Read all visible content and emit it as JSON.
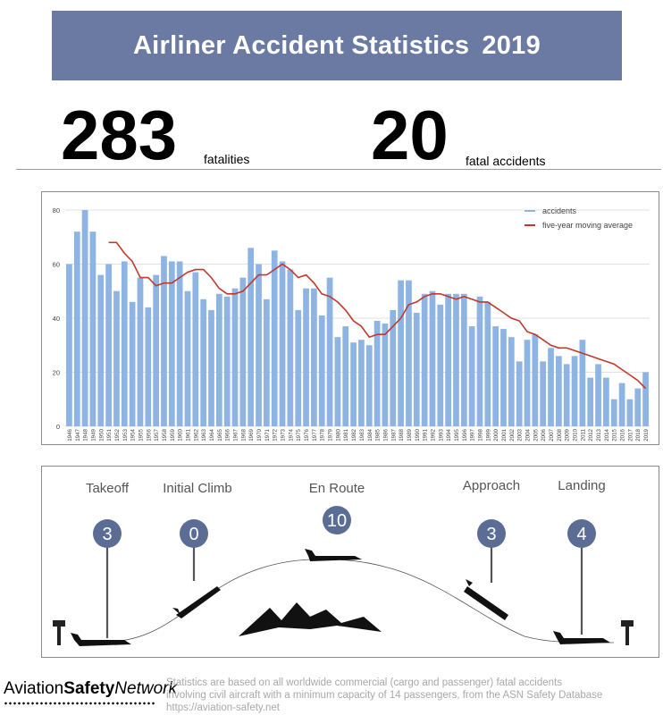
{
  "header": {
    "title": "Airliner Accident Statistics",
    "year": "2019"
  },
  "stats": {
    "fatalities_value": "283",
    "fatalities_label": "fatalities",
    "accidents_value": "20",
    "accidents_label": "fatal accidents"
  },
  "chart_data": {
    "type": "bar",
    "categories": [
      "1946",
      "1947",
      "1948",
      "1949",
      "1950",
      "1951",
      "1952",
      "1953",
      "1954",
      "1955",
      "1956",
      "1957",
      "1958",
      "1959",
      "1960",
      "1961",
      "1962",
      "1963",
      "1964",
      "1965",
      "1966",
      "1967",
      "1968",
      "1969",
      "1970",
      "1971",
      "1972",
      "1973",
      "1974",
      "1975",
      "1976",
      "1977",
      "1978",
      "1979",
      "1980",
      "1981",
      "1982",
      "1983",
      "1984",
      "1985",
      "1986",
      "1987",
      "1988",
      "1989",
      "1990",
      "1991",
      "1992",
      "1993",
      "1994",
      "1995",
      "1996",
      "1997",
      "1998",
      "1999",
      "2000",
      "2001",
      "2002",
      "2003",
      "2004",
      "2005",
      "2006",
      "2007",
      "2008",
      "2009",
      "2010",
      "2011",
      "2012",
      "2013",
      "2014",
      "2015",
      "2016",
      "2017",
      "2018",
      "2019"
    ],
    "series": [
      {
        "name": "accidents",
        "kind": "bar",
        "color": "#8eb4e3",
        "values": [
          60,
          72,
          80,
          72,
          56,
          60,
          50,
          61,
          46,
          55,
          44,
          56,
          63,
          61,
          61,
          50,
          57,
          47,
          43,
          49,
          48,
          51,
          55,
          66,
          60,
          47,
          65,
          61,
          58,
          43,
          51,
          51,
          41,
          55,
          33,
          37,
          31,
          32,
          30,
          39,
          38,
          43,
          54,
          54,
          42,
          49,
          50,
          45,
          49,
          49,
          49,
          37,
          48,
          46,
          37,
          36,
          33,
          24,
          32,
          34,
          24,
          29,
          26,
          23,
          26,
          32,
          18,
          23,
          18,
          10,
          16,
          10,
          14,
          20
        ]
      },
      {
        "name": "five-year moving average",
        "kind": "line",
        "color": "#c0392b",
        "values": [
          null,
          null,
          null,
          null,
          null,
          68,
          68,
          64,
          61,
          55,
          55,
          52,
          53,
          53,
          55,
          57,
          58,
          58,
          55,
          51,
          49,
          49,
          50,
          53,
          56,
          56,
          58,
          60,
          58,
          55,
          56,
          53,
          49,
          48,
          46,
          43,
          39,
          37,
          33,
          34,
          34,
          37,
          40,
          45,
          46,
          48,
          49,
          49,
          48,
          47,
          48,
          47,
          46,
          46,
          44,
          42,
          40,
          39,
          35,
          34,
          32,
          30,
          29,
          29,
          28,
          27,
          26,
          25,
          24,
          23,
          21,
          19,
          17,
          14
        ]
      }
    ],
    "y_ticks": [
      "0",
      "20",
      "40",
      "60",
      "80"
    ],
    "ylim": [
      0,
      80
    ],
    "legend_placement": "top-right",
    "grid": true
  },
  "phases": [
    {
      "name": "Takeoff",
      "count": "3"
    },
    {
      "name": "Initial Climb",
      "count": "0"
    },
    {
      "name": "En Route",
      "count": "10"
    },
    {
      "name": "Approach",
      "count": "3"
    },
    {
      "name": "Landing",
      "count": "4"
    }
  ],
  "footer": {
    "logo_part1": "Aviation",
    "logo_part2": "Safety",
    "logo_part3": "Network",
    "line1": "Statistics are based on all worldwide commercial (cargo and passenger) fatal accidents",
    "line2": "involving civil aircraft with a minimum capacity of 14 passengers, from the ASN Safety Database",
    "line3": "https://aviation-safety.net"
  },
  "colors": {
    "banner": "#6b7aa3",
    "bar": "#8eb4e3",
    "line": "#c0392b",
    "phase_circle": "#5b6d95"
  }
}
